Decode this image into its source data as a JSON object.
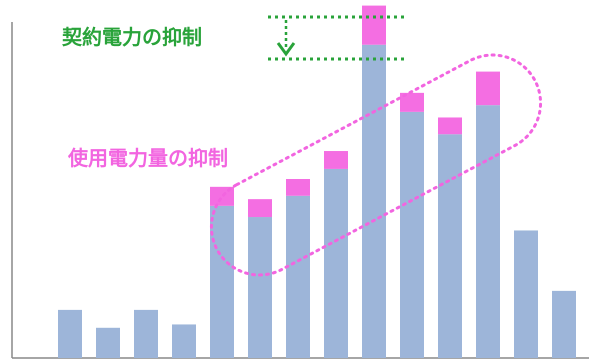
{
  "chart_data": {
    "type": "bar",
    "categories": [
      "",
      "",
      "",
      "",
      "",
      "",
      "",
      "",
      "",
      "",
      "",
      "",
      "",
      "",
      ""
    ],
    "series": [
      {
        "name": "",
        "values": [
          43,
          27,
          43,
          30,
          136,
          126,
          145,
          169,
          280,
          220,
          200,
          226,
          114,
          60,
          0
        ]
      },
      {
        "name": "",
        "values": [
          0,
          0,
          0,
          0,
          17,
          16,
          15,
          16,
          35,
          17,
          15,
          30,
          0,
          0,
          0
        ]
      }
    ],
    "ylim": [
      0,
      320
    ],
    "grid": false,
    "colors": {
      "usage": "#9db5d9",
      "suppressed": "#f46ee2",
      "contract": "#29a33a",
      "usage_annotation": "#f265e0",
      "axis": "#888888"
    }
  },
  "annotations": {
    "contract_label": "契約電力の抑制",
    "usage_label": "使用電力量の抑制"
  }
}
